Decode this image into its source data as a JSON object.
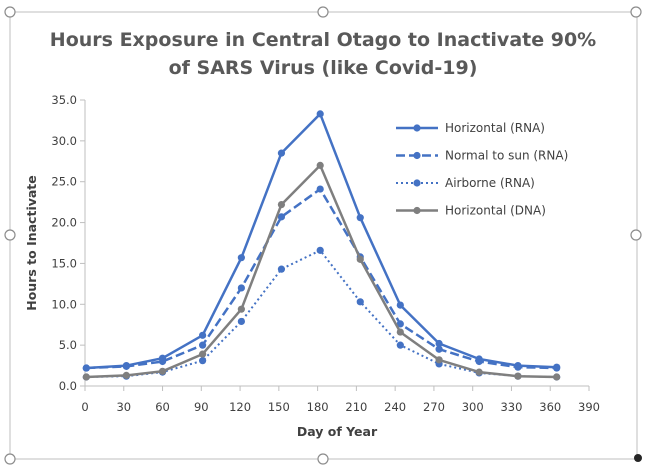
{
  "chart_data": {
    "type": "line",
    "title_lines": [
      "Hours Exposure in Central Otago to Inactivate 90%",
      "of SARS Virus (like Covid-19)"
    ],
    "xlabel": "Day of Year",
    "ylabel": "Hours to Inactivate",
    "xlim": [
      0,
      390
    ],
    "ylim": [
      0,
      35
    ],
    "x_ticks": [
      0,
      30,
      60,
      90,
      120,
      150,
      180,
      210,
      240,
      270,
      300,
      330,
      360,
      390
    ],
    "x_tick_labels": [
      "0",
      "30",
      "60",
      "90",
      "120",
      "150",
      "180",
      "210",
      "240",
      "270",
      "300",
      "330",
      "360",
      "390"
    ],
    "y_ticks": [
      0,
      5,
      10,
      15,
      20,
      25,
      30,
      35
    ],
    "y_tick_labels": [
      "0.0",
      "5.0",
      "10.0",
      "15.0",
      "20.0",
      "25.0",
      "30.0",
      "35.0"
    ],
    "grid": false,
    "legend_position": "top-right",
    "x": [
      1,
      32,
      60,
      91,
      121,
      152,
      182,
      213,
      244,
      274,
      305,
      335,
      365
    ],
    "series": [
      {
        "name": "Horizontal (RNA)",
        "color": "#4472C4",
        "dash": "solid",
        "values": [
          2.2,
          2.5,
          3.4,
          6.2,
          15.7,
          28.5,
          33.3,
          20.6,
          9.9,
          5.2,
          3.3,
          2.5,
          2.3
        ]
      },
      {
        "name": "Normal to sun (RNA)",
        "color": "#4472C4",
        "dash": "dashed",
        "values": [
          2.2,
          2.4,
          3.0,
          5.0,
          12.0,
          20.7,
          24.1,
          15.8,
          7.6,
          4.5,
          3.0,
          2.3,
          2.2
        ]
      },
      {
        "name": "Airborne (RNA)",
        "color": "#4472C4",
        "dash": "dotted",
        "values": [
          1.1,
          1.2,
          1.7,
          3.1,
          7.9,
          14.3,
          16.6,
          10.3,
          5.0,
          2.7,
          1.6,
          1.2,
          1.1
        ]
      },
      {
        "name": "Horizontal (DNA)",
        "color": "#7F7F7F",
        "dash": "solid",
        "values": [
          1.1,
          1.3,
          1.8,
          3.9,
          9.4,
          22.2,
          27.0,
          15.5,
          6.6,
          3.2,
          1.7,
          1.2,
          1.1
        ]
      }
    ]
  }
}
